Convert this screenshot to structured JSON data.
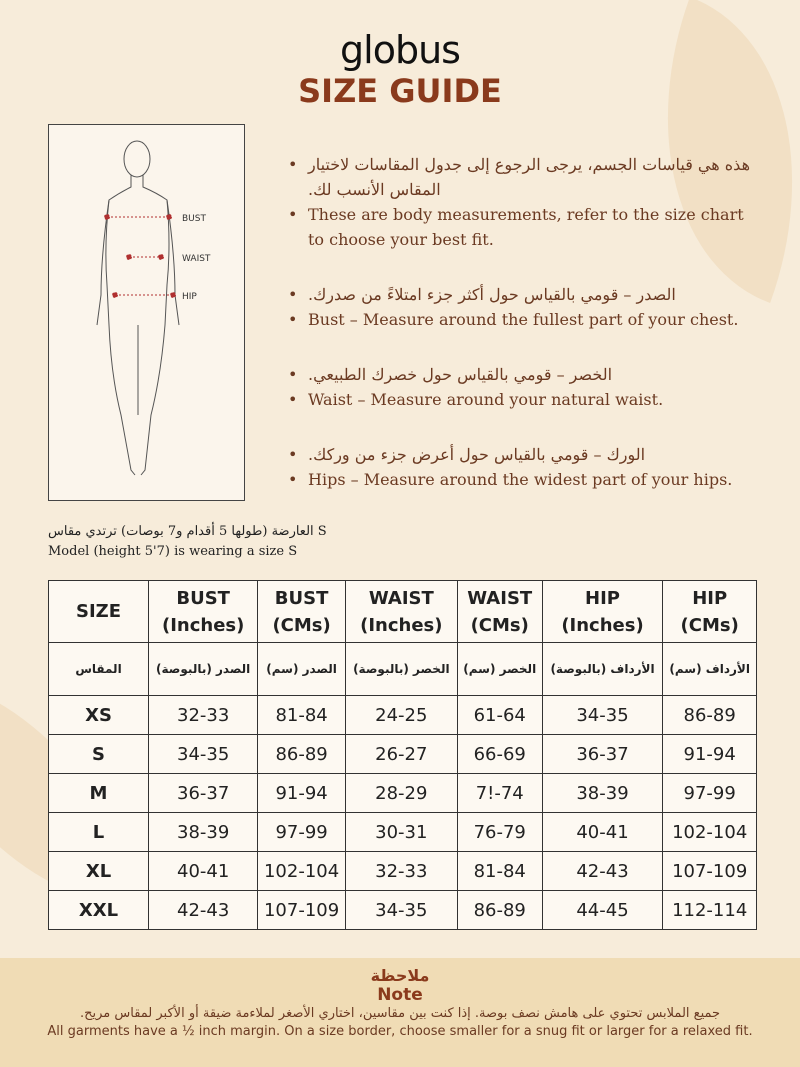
{
  "brand": "globus",
  "title": "SIZE GUIDE",
  "figure_labels": {
    "bust": "BUST",
    "waist": "WAIST",
    "hip": "HIP"
  },
  "bullets": [
    {
      "ar": "هذه هي قياسات الجسم، يرجى الرجوع إلى جدول المقاسات لاختيار المقاس الأنسب لك.",
      "en": "These are body measurements, refer to the size chart to choose your best fit."
    },
    {
      "ar": "الصدر – قومي بالقياس حول أكثر جزء امتلاءً من صدرك.",
      "en": "Bust – Measure around the fullest part of your chest."
    },
    {
      "ar": "الخصر – قومي بالقياس حول خصرك الطبيعي.",
      "en": "Waist – Measure around your natural waist."
    },
    {
      "ar": "الورك – قومي بالقياس حول أعرض جزء من وركك.",
      "en": "Hips – Measure around the widest part of your hips."
    }
  ],
  "model": {
    "ar": "العارضة (طولها 5 أقدام و7 بوصات) ترتدي مقاس S",
    "en": "Model (height 5'7) is wearing a size S"
  },
  "table": {
    "headers": [
      [
        "SIZE",
        ""
      ],
      [
        "BUST",
        "(Inches)"
      ],
      [
        "BUST",
        "(CMs)"
      ],
      [
        "WAIST",
        "(Inches)"
      ],
      [
        "WAIST",
        "(CMs)"
      ],
      [
        "HIP",
        "(Inches)"
      ],
      [
        "HIP",
        "(CMs)"
      ]
    ],
    "headers_ar": [
      "المقاس",
      "الصدر (بالبوصة)",
      "الصدر (سم)",
      "الخصر (بالبوصة)",
      "الخصر (سم)",
      "الأرداف (بالبوصة)",
      "الأرداف (سم)"
    ],
    "rows": [
      [
        "XS",
        "32-33",
        "81-84",
        "24-25",
        "61-64",
        "34-35",
        "86-89"
      ],
      [
        "S",
        "34-35",
        "86-89",
        "26-27",
        "66-69",
        "36-37",
        "91-94"
      ],
      [
        "M",
        "36-37",
        "91-94",
        "28-29",
        "7!-74",
        "38-39",
        "97-99"
      ],
      [
        "L",
        "38-39",
        "97-99",
        "30-31",
        "76-79",
        "40-41",
        "102-104"
      ],
      [
        "XL",
        "40-41",
        "102-104",
        "32-33",
        "81-84",
        "42-43",
        "107-109"
      ],
      [
        "XXL",
        "42-43",
        "107-109",
        "34-35",
        "86-89",
        "44-45",
        "112-114"
      ]
    ]
  },
  "note": {
    "title_ar": "ملاحظة",
    "title_en": "Note",
    "text_ar": "جميع الملابس تحتوي على هامش نصف بوصة. إذا كنت بين مقاسين، اختاري الأصغر لملاءمة ضيقة أو الأكبر لمقاس مريح.",
    "text_en": "All garments have a ½ inch margin. On a size border, choose smaller for a snug fit or larger for a relaxed fit."
  },
  "colors": {
    "background": "#f7ecda",
    "accent": "#8a3a1c",
    "text": "#6b3a22",
    "note_band": "#f0dcb5",
    "measure_marker": "#b03030"
  }
}
